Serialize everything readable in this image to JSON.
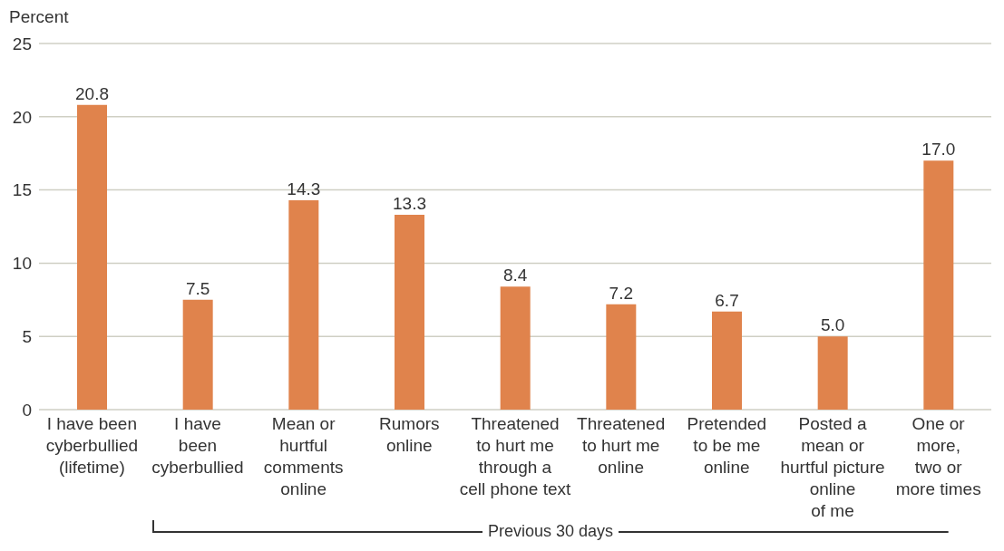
{
  "chart_data": {
    "type": "bar",
    "ylabel": "Percent",
    "categories": [
      "I have been\ncyberbullied\n(lifetime)",
      "I have\nbeen\ncyberbullied",
      "Mean or\nhurtful\ncomments\nonline",
      "Rumors\nonline",
      "Threatened\nto hurt me\nthrough a\ncell phone text",
      "Threatened\nto hurt me\nonline",
      "Pretended\nto be me\nonline",
      "Posted a\nmean or\nhurtful picture\nonline\nof me",
      "One or\nmore,\ntwo or\nmore times"
    ],
    "values": [
      20.8,
      7.5,
      14.3,
      13.3,
      8.4,
      7.2,
      6.7,
      5.0,
      17.0
    ],
    "value_labels": [
      "20.8",
      "7.5",
      "14.3",
      "13.3",
      "8.4",
      "7.2",
      "6.7",
      "5.0",
      "17.0"
    ],
    "color": "#e0834c",
    "ylim": [
      0,
      25
    ],
    "yticks": [
      0,
      5,
      10,
      15,
      20,
      25
    ],
    "grid": "y",
    "annotations": [
      "Previous 30 days"
    ]
  }
}
